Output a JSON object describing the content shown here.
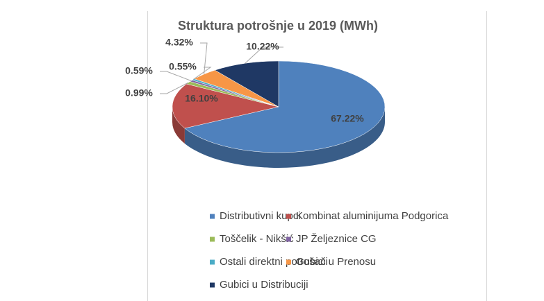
{
  "chart_data": {
    "type": "pie",
    "title": "Struktura potrošnje u 2019 (MWh)",
    "categories": [
      "Distributivni kupci",
      "Kombinat aluminijuma Podgorica",
      "Toščelik - Nikšić",
      "JP Željeznice CG",
      "Ostali direktni potrošači",
      "Gubici u Prenosu",
      "Gubici u Distribuciji"
    ],
    "values": [
      67.22,
      16.1,
      0.99,
      0.59,
      0.55,
      4.32,
      10.22
    ],
    "value_labels": [
      "67.22%",
      "16.10%",
      "0.99%",
      "0.59%",
      "0.55%",
      "4.32%",
      "10.22%"
    ],
    "colors": [
      "#4f81bd",
      "#c0504d",
      "#9bbb59",
      "#8064a2",
      "#4bacc6",
      "#f79646",
      "#1f3864"
    ],
    "legend": "bottom"
  }
}
